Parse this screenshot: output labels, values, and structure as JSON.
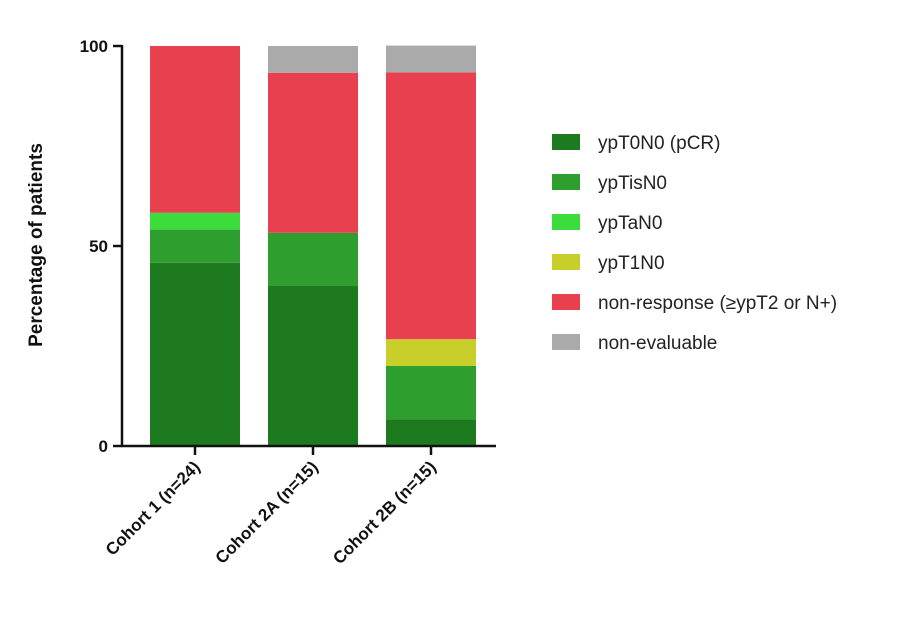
{
  "chart_data": {
    "type": "bar",
    "stacked": true,
    "ylabel": "Percentage of patients",
    "xlabel": "",
    "ylim": [
      0,
      100
    ],
    "yticks": [
      0,
      50,
      100
    ],
    "legend_position": "right",
    "categories": [
      "Cohort 1 (n=24)",
      "Cohort 2A (n=15)",
      "Cohort 2B (n=15)"
    ],
    "series": [
      {
        "name": "ypT0N0 (pCR)",
        "color": "#1e7a1e",
        "values": [
          45.8,
          40.0,
          6.7
        ]
      },
      {
        "name": "ypTisN0",
        "color": "#2e9e2e",
        "values": [
          8.3,
          13.3,
          13.3
        ]
      },
      {
        "name": "ypTaN0",
        "color": "#3ddc3d",
        "values": [
          4.2,
          0,
          0
        ]
      },
      {
        "name": "ypT1N0",
        "color": "#c9cf2a",
        "values": [
          0,
          0,
          6.7
        ]
      },
      {
        "name": "non-response (≥ypT2 or N+)",
        "color": "#e8404f",
        "values": [
          41.7,
          40.0,
          66.7
        ]
      },
      {
        "name": "non-evaluable",
        "color": "#aaaaaa",
        "values": [
          0,
          6.7,
          6.7
        ]
      }
    ]
  }
}
